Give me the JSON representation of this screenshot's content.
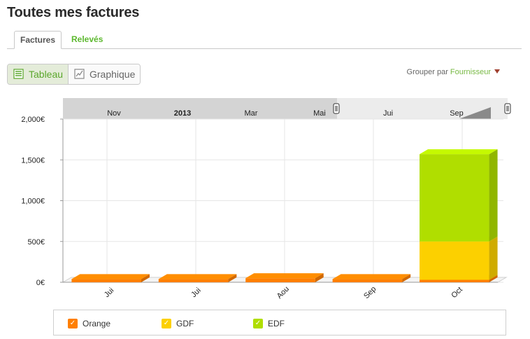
{
  "page": {
    "title": "Toutes mes factures"
  },
  "tabs": [
    {
      "label": "Factures",
      "active": true
    },
    {
      "label": "Relevés",
      "active": false
    }
  ],
  "view_toggle": {
    "table_label": "Tableau",
    "chart_label": "Graphique",
    "active": "Tableau"
  },
  "group_by": {
    "label": "Grouper par",
    "value": "Fournisseur"
  },
  "timeline": {
    "labels": [
      {
        "text": "Nov",
        "bold": false
      },
      {
        "text": "2013",
        "bold": true
      },
      {
        "text": "Mar",
        "bold": false
      },
      {
        "text": "Mai",
        "bold": false
      },
      {
        "text": "Jui",
        "bold": false
      },
      {
        "text": "Sep",
        "bold": false
      }
    ]
  },
  "colors": {
    "orange": "#ff7f00",
    "gdf": "#fcd000",
    "edf": "#b0de00",
    "accent": "#5cb82e"
  },
  "chart_data": {
    "type": "bar",
    "stacked": true,
    "three_d": true,
    "categories": [
      "Jui",
      "Jui",
      "Aou",
      "Sep",
      "Oct"
    ],
    "series": [
      {
        "name": "Orange",
        "color": "#ff7f00",
        "values": [
          40,
          40,
          50,
          40,
          30
        ]
      },
      {
        "name": "GDF",
        "color": "#fcd000",
        "values": [
          0,
          0,
          0,
          0,
          470
        ]
      },
      {
        "name": "EDF",
        "color": "#b0de00",
        "values": [
          0,
          0,
          0,
          0,
          1070
        ]
      }
    ],
    "y_ticks": [
      "0€",
      "500€",
      "1,000€",
      "1,500€",
      "2,000€"
    ],
    "ylim": [
      0,
      2000
    ],
    "grid": true,
    "legend_position": "bottom"
  }
}
